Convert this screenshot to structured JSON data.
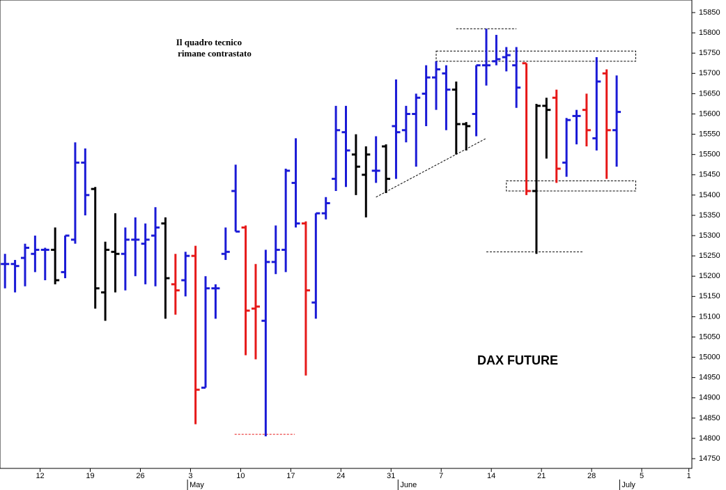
{
  "chart_data": {
    "type": "ohlc",
    "title": "DAX FUTURE",
    "annotation": [
      "Il quadro tecnico",
      "rimane contrastato"
    ],
    "x": [
      0,
      1,
      2,
      3,
      4,
      5,
      6,
      7,
      8,
      9,
      10,
      11,
      12,
      13,
      14,
      15,
      16,
      17,
      18,
      19,
      20,
      21,
      22,
      23,
      24,
      25,
      26,
      27,
      28,
      29,
      30,
      31,
      32,
      33,
      34,
      35,
      36,
      37,
      38,
      39,
      40,
      41,
      42,
      43,
      44,
      45,
      46,
      47,
      48,
      49,
      50,
      51,
      52,
      53,
      54,
      55,
      56,
      57,
      58,
      59,
      60,
      61
    ],
    "series": [
      {
        "open": [
          15230,
          15230,
          15245,
          15255,
          15265,
          15265,
          15210,
          15290,
          15480,
          15415,
          15160,
          15260,
          15255,
          15290,
          15280,
          15300,
          15330,
          15180,
          15190,
          15250,
          14925,
          15170,
          15255,
          15410,
          15320,
          15120,
          15090,
          15235,
          15265,
          15430,
          15330,
          15135,
          15355,
          15440,
          15555,
          15500,
          15450,
          15460,
          15520,
          15570,
          15560,
          15600,
          15650,
          15690,
          15700,
          15660,
          15575,
          15600,
          15720,
          15730,
          15740,
          15720,
          15725,
          15410,
          15620,
          15640,
          15480,
          15595,
          15610,
          15540,
          15700,
          15560
        ],
        "high": [
          15255,
          15240,
          15280,
          15300,
          15270,
          15320,
          15300,
          15530,
          15515,
          15420,
          15285,
          15355,
          15320,
          15345,
          15330,
          15370,
          15345,
          15255,
          15260,
          15275,
          15200,
          15180,
          15320,
          15475,
          15325,
          15230,
          15265,
          15325,
          15465,
          15540,
          15335,
          15355,
          15395,
          15620,
          15620,
          15550,
          15520,
          15545,
          15525,
          15685,
          15620,
          15650,
          15720,
          15730,
          15720,
          15680,
          15580,
          15720,
          15810,
          15795,
          15765,
          15765,
          15725,
          15625,
          15640,
          15660,
          15590,
          15610,
          15650,
          15740,
          15710,
          15695
        ],
        "low": [
          15170,
          15160,
          15175,
          15210,
          15190,
          15180,
          15195,
          15280,
          15350,
          15120,
          15090,
          15160,
          15165,
          15200,
          15180,
          15175,
          15095,
          15105,
          15150,
          14835,
          14925,
          15095,
          15240,
          15310,
          15005,
          14995,
          14805,
          15205,
          15210,
          15320,
          14955,
          15095,
          15340,
          15410,
          15420,
          15400,
          15345,
          15430,
          15405,
          15440,
          15530,
          15470,
          15570,
          15610,
          15560,
          15500,
          15510,
          15545,
          15670,
          15720,
          15705,
          15615,
          15400,
          15255,
          15490,
          15430,
          15445,
          15525,
          15520,
          15510,
          15440,
          15470
        ],
        "close": [
          15230,
          15225,
          15270,
          15265,
          15265,
          15190,
          15300,
          15480,
          15400,
          15170,
          15265,
          15255,
          15290,
          15290,
          15290,
          15320,
          15195,
          15165,
          15250,
          14920,
          15170,
          15170,
          15260,
          15310,
          15115,
          15125,
          15235,
          15265,
          15460,
          15330,
          15165,
          15355,
          15380,
          15560,
          15510,
          15470,
          15500,
          15460,
          15440,
          15555,
          15600,
          15640,
          15690,
          15710,
          15660,
          15575,
          15570,
          15720,
          15720,
          15735,
          15745,
          15665,
          15410,
          15620,
          15610,
          15465,
          15585,
          15595,
          15560,
          15680,
          15560,
          15605
        ],
        "colors": [
          "#1a1ad6",
          "#1a1ad6",
          "#1a1ad6",
          "#1a1ad6",
          "#1a1ad6",
          "#000000",
          "#1a1ad6",
          "#1a1ad6",
          "#1a1ad6",
          "#000000",
          "#000000",
          "#000000",
          "#1a1ad6",
          "#1a1ad6",
          "#1a1ad6",
          "#1a1ad6",
          "#000000",
          "#e61919",
          "#1a1ad6",
          "#e61919",
          "#1a1ad6",
          "#1a1ad6",
          "#1a1ad6",
          "#1a1ad6",
          "#e61919",
          "#e61919",
          "#1a1ad6",
          "#1a1ad6",
          "#1a1ad6",
          "#1a1ad6",
          "#e61919",
          "#1a1ad6",
          "#1a1ad6",
          "#1a1ad6",
          "#1a1ad6",
          "#000000",
          "#000000",
          "#1a1ad6",
          "#000000",
          "#1a1ad6",
          "#1a1ad6",
          "#1a1ad6",
          "#1a1ad6",
          "#1a1ad6",
          "#1a1ad6",
          "#000000",
          "#000000",
          "#1a1ad6",
          "#1a1ad6",
          "#1a1ad6",
          "#1a1ad6",
          "#1a1ad6",
          "#e61919",
          "#000000",
          "#000000",
          "#e61919",
          "#1a1ad6",
          "#1a1ad6",
          "#e61919",
          "#1a1ad6",
          "#e61919",
          "#1a1ad6"
        ]
      }
    ],
    "xlim": [
      -0.5,
      68.5
    ],
    "xticks": [
      {
        "value": 3.5,
        "label": "12"
      },
      {
        "value": 8.5,
        "label": "19"
      },
      {
        "value": 13.5,
        "label": "26"
      },
      {
        "value": 18.5,
        "label": "3"
      },
      {
        "value": 23.5,
        "label": "10"
      },
      {
        "value": 28.5,
        "label": "17"
      },
      {
        "value": 33.5,
        "label": "24"
      },
      {
        "value": 38.5,
        "label": "31"
      },
      {
        "value": 43.5,
        "label": "7"
      },
      {
        "value": 48.5,
        "label": "14"
      },
      {
        "value": 53.5,
        "label": "21"
      },
      {
        "value": 58.5,
        "label": "28"
      },
      {
        "value": 63.5,
        "label": "5"
      },
      {
        "value": 68.2,
        "label": "1"
      }
    ],
    "month_labels": [
      {
        "value": 18.2,
        "label": "May"
      },
      {
        "value": 39.2,
        "label": "June"
      },
      {
        "value": 61.3,
        "label": "July"
      }
    ],
    "ylim": [
      14726,
      15881
    ],
    "yticks": [
      14750,
      14800,
      14850,
      14900,
      14950,
      15000,
      15050,
      15100,
      15150,
      15200,
      15250,
      15300,
      15350,
      15400,
      15450,
      15500,
      15550,
      15600,
      15650,
      15700,
      15750,
      15800,
      15850
    ],
    "levels": [
      {
        "x": [
          22.9,
          28.9
        ],
        "y": 14810,
        "color": "#e61919"
      },
      {
        "x": [
          45,
          51
        ],
        "y": 15810,
        "color": "#000000"
      },
      {
        "x": [
          48,
          57.7
        ],
        "y": 15260,
        "color": "#000000"
      }
    ],
    "boxes": [
      {
        "x": [
          43,
          62.9
        ],
        "y": [
          15730,
          15755
        ]
      },
      {
        "x": [
          50,
          62.9
        ],
        "y": [
          15410,
          15435
        ]
      }
    ],
    "trend": {
      "x": [
        37,
        48
      ],
      "y": [
        15395,
        15540
      ]
    }
  }
}
